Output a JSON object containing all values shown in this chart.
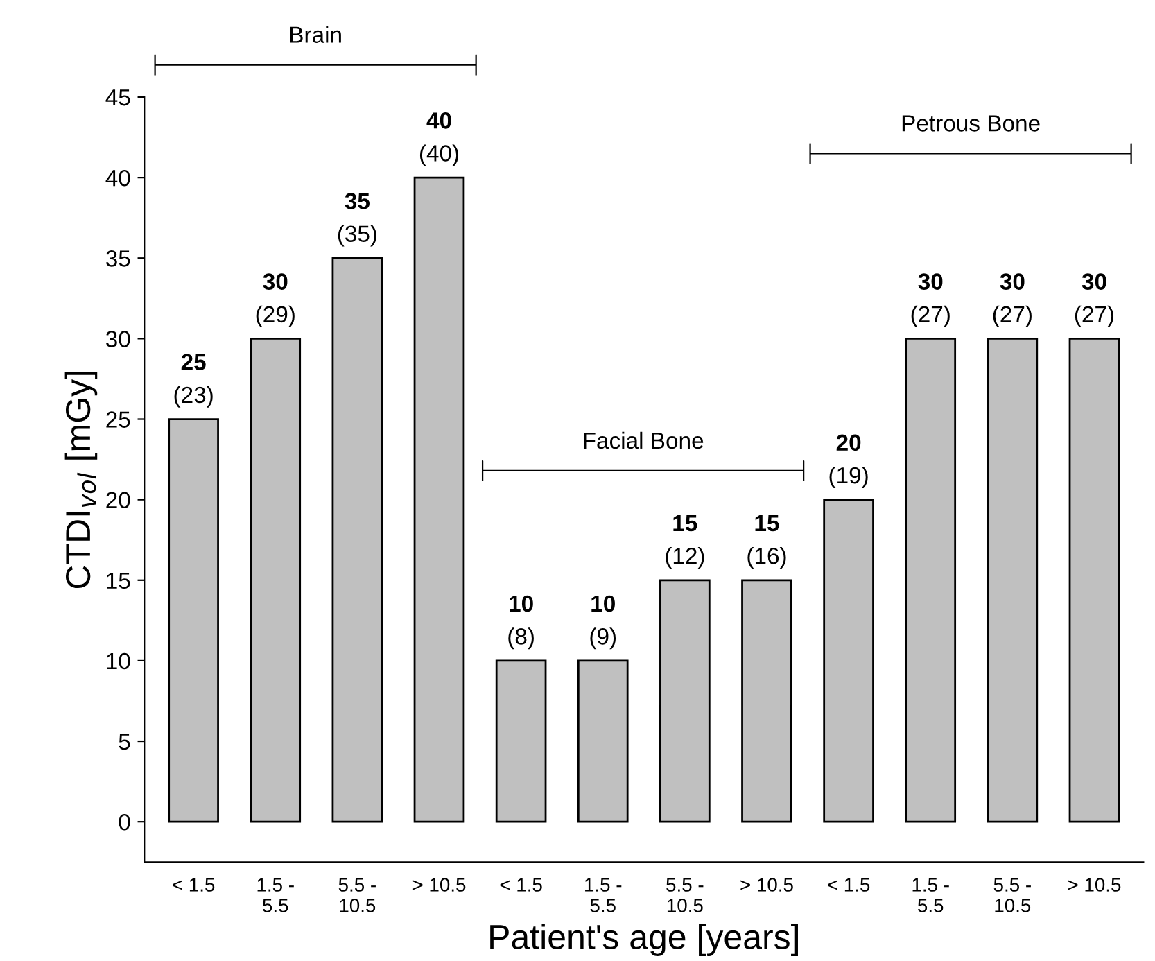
{
  "chart_data": {
    "type": "bar",
    "xlabel": "Patient's age [years]",
    "ylabel": "CTDI$_{vol}$ [mGy]",
    "categories": [
      "< 1.5",
      "1.5 -\n5.5",
      "5.5 -\n10.5",
      "> 10.5",
      "< 1.5",
      "1.5 -\n5.5",
      "5.5 -\n10.5",
      "> 10.5",
      "< 1.5",
      "1.5 -\n5.5",
      "5.5 -\n10.5",
      "> 10.5"
    ],
    "values": [
      25,
      30,
      35,
      40,
      10,
      10,
      15,
      15,
      20,
      30,
      30,
      30
    ],
    "value_labels": [
      "25\n(23)",
      "30\n(29)",
      "35\n(35)",
      "40\n(40)",
      "10\n(8)",
      "10\n(9)",
      "15\n(12)",
      "15\n(16)",
      "20\n(19)",
      "30\n(27)",
      "30\n(27)",
      "30\n(27)"
    ],
    "color": "#c0c0c0",
    "ylim": [
      -2.5,
      45
    ],
    "yticks": [
      0,
      5,
      10,
      15,
      20,
      25,
      30,
      35,
      40,
      45
    ],
    "annotations": [
      "Brain",
      "Facial Bone",
      "Petrous Bone"
    ],
    "grid": false,
    "legend": false
  }
}
